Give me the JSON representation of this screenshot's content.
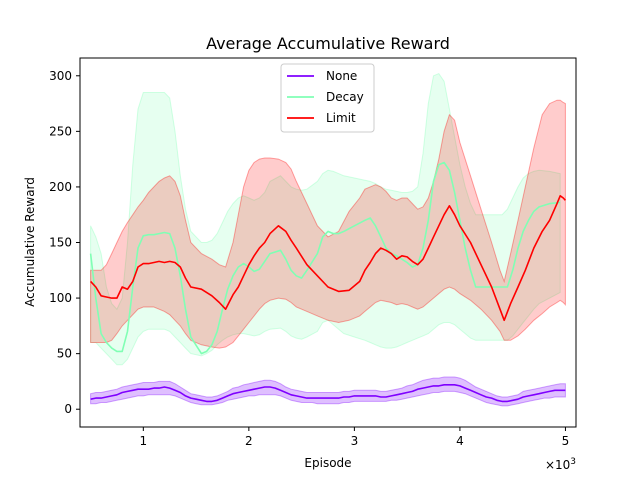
{
  "chart_data": {
    "type": "line",
    "title": "Average Accumulative Reward",
    "xlabel": "Episode",
    "ylabel": "Accumulative Reward",
    "x_scale_label": "×10",
    "x_scale_exponent": "3",
    "xlim": [
      0.4,
      5.1
    ],
    "ylim": [
      -16,
      316
    ],
    "xticks": [
      1,
      2,
      3,
      4,
      5
    ],
    "xtick_labels": [
      "1",
      "2",
      "3",
      "4",
      "5"
    ],
    "yticks": [
      0,
      50,
      100,
      150,
      200,
      250,
      300
    ],
    "ytick_labels": [
      "0",
      "50",
      "100",
      "150",
      "200",
      "250",
      "300"
    ],
    "grid": false,
    "legend_position": "top-center",
    "x": [
      0.5,
      0.55,
      0.6,
      0.65,
      0.7,
      0.75,
      0.8,
      0.85,
      0.9,
      0.95,
      1.0,
      1.05,
      1.1,
      1.15,
      1.2,
      1.25,
      1.3,
      1.35,
      1.4,
      1.45,
      1.5,
      1.55,
      1.6,
      1.65,
      1.7,
      1.75,
      1.8,
      1.85,
      1.9,
      1.95,
      2.0,
      2.05,
      2.1,
      2.15,
      2.2,
      2.25,
      2.3,
      2.35,
      2.4,
      2.45,
      2.5,
      2.55,
      2.6,
      2.65,
      2.7,
      2.75,
      2.8,
      2.85,
      2.9,
      2.95,
      3.0,
      3.05,
      3.1,
      3.15,
      3.2,
      3.25,
      3.3,
      3.35,
      3.4,
      3.45,
      3.5,
      3.55,
      3.6,
      3.65,
      3.7,
      3.75,
      3.8,
      3.85,
      3.9,
      3.95,
      4.0,
      4.05,
      4.1,
      4.15,
      4.2,
      4.25,
      4.3,
      4.35,
      4.4,
      4.45,
      4.5,
      4.55,
      4.6,
      4.65,
      4.7,
      4.75,
      4.8,
      4.85,
      4.9,
      4.95,
      5.0
    ],
    "series": [
      {
        "name": "None",
        "color": "#7f00ff",
        "band_opacity": 0.25,
        "values": [
          9,
          10,
          10,
          11,
          12,
          13,
          15,
          16,
          17,
          18,
          18,
          18,
          19,
          19,
          20,
          19,
          17,
          15,
          12,
          10,
          9,
          8,
          7,
          7,
          8,
          10,
          12,
          14,
          15,
          16,
          17,
          18,
          19,
          20,
          20,
          19,
          17,
          15,
          13,
          12,
          11,
          10,
          10,
          10,
          10,
          10,
          10,
          10,
          11,
          11,
          12,
          12,
          12,
          12,
          12,
          11,
          11,
          12,
          13,
          14,
          15,
          16,
          18,
          19,
          20,
          21,
          21,
          22,
          22,
          22,
          21,
          19,
          17,
          15,
          13,
          11,
          10,
          8,
          7,
          7,
          8,
          9,
          11,
          12,
          13,
          14,
          15,
          16,
          17,
          17,
          17
        ],
        "lower": [
          5,
          5,
          6,
          6,
          7,
          8,
          9,
          10,
          11,
          12,
          12,
          13,
          13,
          13,
          13,
          13,
          12,
          10,
          8,
          6,
          5,
          4,
          4,
          4,
          5,
          6,
          8,
          9,
          10,
          11,
          12,
          12,
          13,
          13,
          13,
          13,
          12,
          10,
          8,
          7,
          6,
          6,
          6,
          5,
          5,
          5,
          5,
          5,
          6,
          6,
          7,
          7,
          7,
          7,
          7,
          7,
          7,
          8,
          8,
          9,
          10,
          11,
          12,
          13,
          14,
          15,
          15,
          16,
          16,
          16,
          15,
          14,
          12,
          10,
          8,
          6,
          5,
          4,
          3,
          3,
          4,
          5,
          6,
          7,
          8,
          9,
          10,
          10,
          11,
          11,
          11
        ],
        "upper": [
          14,
          15,
          15,
          16,
          17,
          18,
          20,
          21,
          22,
          23,
          24,
          24,
          24,
          25,
          25,
          25,
          23,
          20,
          17,
          14,
          13,
          12,
          11,
          11,
          12,
          14,
          16,
          19,
          20,
          22,
          23,
          24,
          25,
          26,
          26,
          25,
          23,
          20,
          18,
          17,
          16,
          15,
          15,
          15,
          15,
          15,
          15,
          15,
          16,
          16,
          17,
          17,
          17,
          17,
          17,
          16,
          16,
          17,
          18,
          19,
          21,
          22,
          24,
          26,
          27,
          28,
          28,
          29,
          29,
          29,
          28,
          26,
          23,
          20,
          18,
          16,
          14,
          12,
          11,
          11,
          12,
          13,
          16,
          17,
          18,
          19,
          20,
          21,
          22,
          23,
          23
        ]
      },
      {
        "name": "Decay",
        "color": "#80ffb4",
        "band_opacity": 0.2,
        "values": [
          140,
          100,
          68,
          60,
          55,
          52,
          52,
          70,
          110,
          145,
          156,
          157,
          157,
          158,
          159,
          158,
          145,
          120,
          90,
          65,
          50,
          52,
          58,
          70,
          90,
          108,
          120,
          128,
          131,
          128,
          124,
          126,
          133,
          140,
          143,
          135,
          125,
          120,
          118,
          125,
          140,
          155,
          160,
          158,
          158,
          160,
          165,
          170,
          172,
          165,
          155,
          145,
          140,
          138,
          135,
          132,
          128,
          130,
          145,
          170,
          205,
          220,
          222,
          215,
          195,
          170,
          145,
          125,
          110,
          110,
          110,
          125,
          145,
          160,
          170,
          178,
          182,
          185,
          186
        ],
        "lower": [
          60,
          60,
          55,
          50,
          45,
          40,
          40,
          45,
          55,
          65,
          70,
          72,
          72,
          72,
          72,
          70,
          65,
          60,
          55,
          50,
          48,
          50,
          53,
          58,
          62,
          65,
          67,
          68,
          68,
          67,
          66,
          67,
          70,
          72,
          73,
          70,
          66,
          64,
          63,
          65,
          70,
          78,
          80,
          76,
          72,
          68,
          65,
          62,
          60,
          58,
          56,
          55,
          55,
          56,
          58,
          60,
          62,
          64,
          66,
          68,
          72,
          76,
          78,
          78,
          76,
          72,
          68,
          64,
          62,
          62,
          62,
          66,
          72,
          78,
          84,
          90,
          95,
          100,
          105
        ],
        "upper": [
          165,
          155,
          140,
          110,
          95,
          90,
          100,
          150,
          220,
          270,
          285,
          285,
          285,
          285,
          285,
          280,
          250,
          210,
          180,
          160,
          150,
          150,
          152,
          158,
          168,
          178,
          185,
          190,
          192,
          190,
          188,
          190,
          195,
          205,
          210,
          205,
          200,
          198,
          197,
          198,
          205,
          212,
          215,
          214,
          212,
          210,
          208,
          206,
          205,
          203,
          200,
          198,
          197,
          196,
          195,
          195,
          196,
          200,
          230,
          275,
          300,
          302,
          295,
          270,
          245,
          220,
          200,
          185,
          175,
          175,
          180,
          190,
          200,
          208,
          212,
          214,
          215,
          214,
          212
        ],
        "x": [
          0.5,
          0.55,
          0.6,
          0.65,
          0.7,
          0.75,
          0.8,
          0.85,
          0.9,
          0.95,
          1.0,
          1.05,
          1.1,
          1.15,
          1.2,
          1.25,
          1.3,
          1.35,
          1.4,
          1.45,
          1.55,
          1.6,
          1.65,
          1.7,
          1.75,
          1.8,
          1.85,
          1.9,
          1.95,
          2.0,
          2.05,
          2.1,
          2.15,
          2.2,
          2.3,
          2.35,
          2.4,
          2.45,
          2.5,
          2.55,
          2.65,
          2.7,
          2.75,
          2.8,
          2.85,
          2.9,
          3.0,
          3.1,
          3.15,
          3.2,
          3.25,
          3.3,
          3.35,
          3.4,
          3.45,
          3.5,
          3.55,
          3.6,
          3.65,
          3.7,
          3.75,
          3.8,
          3.85,
          3.9,
          3.95,
          4.0,
          4.05,
          4.1,
          4.15,
          4.4,
          4.45,
          4.5,
          4.55,
          4.6,
          4.65,
          4.7,
          4.75,
          4.85,
          4.95
        ]
      },
      {
        "name": "Limit",
        "color": "#ff0000",
        "band_opacity": 0.2,
        "values": [
          115,
          110,
          102,
          101,
          100,
          100,
          110,
          108,
          115,
          128,
          131,
          131,
          132,
          133,
          132,
          133,
          132,
          128,
          118,
          110,
          108,
          102,
          96,
          90,
          103,
          110,
          120,
          130,
          138,
          145,
          150,
          158,
          165,
          160,
          152,
          145,
          130,
          120,
          110,
          106,
          107,
          115,
          125,
          132,
          140,
          145,
          143,
          140,
          135,
          138,
          137,
          133,
          130,
          135,
          145,
          155,
          165,
          175,
          183,
          175,
          165,
          150,
          130,
          110,
          90,
          80,
          95,
          110,
          125,
          145,
          160,
          170,
          185,
          192,
          190,
          188
        ],
        "lower": [
          60,
          60,
          60,
          60,
          62,
          68,
          75,
          80,
          85,
          90,
          92,
          92,
          92,
          90,
          88,
          85,
          80,
          75,
          68,
          62,
          58,
          56,
          55,
          56,
          60,
          66,
          72,
          78,
          84,
          90,
          95,
          98,
          100,
          99,
          96,
          92,
          88,
          84,
          80,
          78,
          80,
          84,
          88,
          92,
          96,
          98,
          97,
          96,
          94,
          95,
          94,
          92,
          90,
          92,
          96,
          100,
          104,
          108,
          110,
          108,
          104,
          98,
          90,
          80,
          70,
          62,
          62,
          66,
          72,
          80,
          86,
          92,
          96,
          98,
          96,
          94
        ],
        "upper": [
          125,
          125,
          125,
          130,
          140,
          150,
          160,
          168,
          175,
          182,
          188,
          195,
          200,
          205,
          208,
          210,
          205,
          192,
          170,
          150,
          140,
          135,
          130,
          128,
          150,
          175,
          200,
          215,
          222,
          225,
          226,
          226,
          225,
          222,
          216,
          205,
          185,
          165,
          155,
          160,
          178,
          190,
          198,
          200,
          202,
          200,
          196,
          190,
          188,
          190,
          190,
          185,
          180,
          182,
          190,
          205,
          225,
          250,
          265,
          260,
          240,
          210,
          180,
          150,
          125,
          115,
          140,
          170,
          200,
          235,
          265,
          275,
          278,
          278,
          276,
          275
        ],
        "x": [
          0.5,
          0.55,
          0.6,
          0.65,
          0.7,
          0.75,
          0.8,
          0.85,
          0.9,
          0.95,
          1.0,
          1.05,
          1.1,
          1.15,
          1.2,
          1.25,
          1.3,
          1.35,
          1.4,
          1.45,
          1.55,
          1.65,
          1.72,
          1.78,
          1.85,
          1.9,
          1.95,
          2.0,
          2.05,
          2.1,
          2.15,
          2.2,
          2.28,
          2.35,
          2.4,
          2.45,
          2.55,
          2.65,
          2.75,
          2.85,
          2.95,
          3.05,
          3.1,
          3.15,
          3.2,
          3.25,
          3.3,
          3.35,
          3.4,
          3.45,
          3.5,
          3.55,
          3.6,
          3.65,
          3.7,
          3.75,
          3.8,
          3.85,
          3.9,
          3.95,
          4.0,
          4.1,
          4.2,
          4.3,
          4.38,
          4.42,
          4.48,
          4.55,
          4.62,
          4.7,
          4.78,
          4.85,
          4.92,
          4.95,
          4.98,
          5.0
        ]
      }
    ]
  }
}
